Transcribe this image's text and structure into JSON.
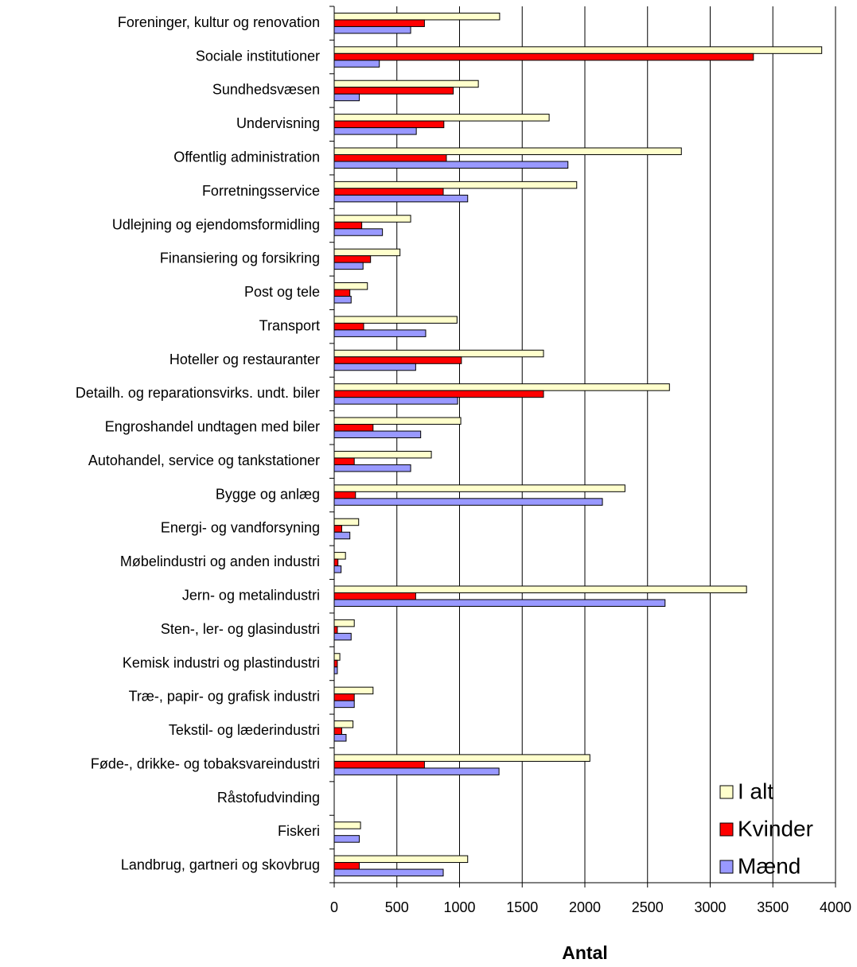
{
  "chart_data": {
    "type": "bar",
    "orientation": "horizontal",
    "xlabel": "Antal",
    "categories": [
      "Foreninger, kultur og renovation",
      "Sociale institutioner",
      "Sundhedsvæsen",
      "Undervisning",
      "Offentlig administration",
      "Forretningsservice",
      "Udlejning og ejendomsformidling",
      "Finansiering og forsikring",
      "Post og tele",
      "Transport",
      "Hoteller og restauranter",
      "Detailh. og reparationsvirks. undt. biler",
      "Engroshandel undtagen med biler",
      "Autohandel, service og tankstationer",
      "Bygge og anlæg",
      "Energi- og vandforsyning",
      "Møbelindustri og anden industri",
      "Jern- og metalindustri",
      "Sten-, ler- og glasindustri",
      "Kemisk industri og plastindustri",
      "Træ-, papir- og grafisk industri",
      "Tekstil- og læderindustri",
      "Føde-, drikke- og tobaksvareindustri",
      "Råstofudvinding",
      "Fiskeri",
      "Landbrug, gartneri og skovbrug"
    ],
    "series": [
      {
        "name": "I alt",
        "color": "#ffffcc",
        "values": [
          1320,
          3890,
          1150,
          1715,
          2770,
          1935,
          610,
          525,
          265,
          980,
          1670,
          2675,
          1010,
          775,
          2320,
          195,
          90,
          3290,
          160,
          45,
          310,
          150,
          2040,
          0,
          210,
          1065
        ]
      },
      {
        "name": "Kvinder",
        "color": "#ff0000",
        "values": [
          720,
          3345,
          950,
          875,
          895,
          870,
          220,
          290,
          125,
          235,
          1015,
          1670,
          310,
          160,
          170,
          60,
          30,
          650,
          25,
          25,
          160,
          60,
          720,
          0,
          0,
          200
        ]
      },
      {
        "name": "Mænd",
        "color": "#9999ff",
        "values": [
          610,
          360,
          200,
          655,
          1865,
          1065,
          385,
          230,
          135,
          730,
          650,
          985,
          690,
          610,
          2140,
          125,
          55,
          2640,
          135,
          25,
          160,
          95,
          1315,
          0,
          200,
          870
        ]
      }
    ],
    "xlim": [
      0,
      4000
    ],
    "xticks": [
      0,
      500,
      1000,
      1500,
      2000,
      2500,
      3000,
      3500,
      4000
    ],
    "grid": true,
    "legend": "lower right"
  }
}
